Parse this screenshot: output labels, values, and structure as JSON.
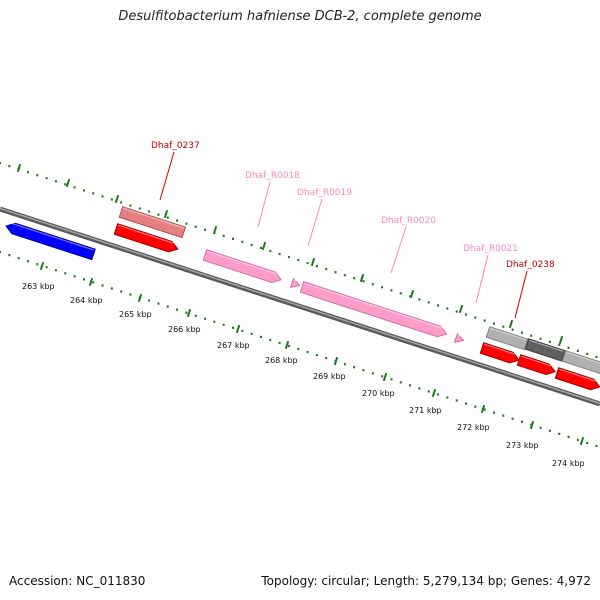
{
  "title": "Desulfitobacterium hafniense DCB-2, complete genome",
  "footer": {
    "accession": "Accession: NC_011830",
    "topology": "Topology: circular; Length: 5,279,134 bp; Genes: 4,972"
  },
  "colors": {
    "backbone": "#808080",
    "tick": "#1a7a1a",
    "cds_red": "#ff0000",
    "cds_blue": "#0000ff",
    "gene_salmon": "#e58080",
    "rna_pink": "#ff9ccc",
    "gene_grey": "#b0b0b0",
    "gene_dark": "#606060",
    "label_red": "#cc0000",
    "label_pink": "#ff88bb"
  },
  "kbp_labels": [
    "263 kbp",
    "264 kbp",
    "265 kbp",
    "266 kbp",
    "267 kbp",
    "268 kbp",
    "269 kbp",
    "270 kbp",
    "271 kbp",
    "272 kbp",
    "273 kbp",
    "274 kbp"
  ],
  "gene_labels": [
    "Dhaf_0237",
    "Dhaf_R0018",
    "Dhaf_R0019",
    "Dhaf_R0020",
    "Dhaf_R0021",
    "Dhaf_0238"
  ]
}
